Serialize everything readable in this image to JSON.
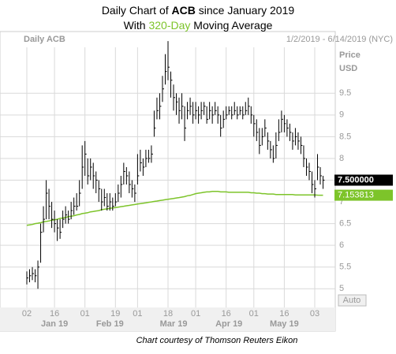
{
  "chart_data": {
    "type": "ohlc",
    "title_line1": [
      "Daily Chart of ",
      "ACB",
      " since January 2019"
    ],
    "title_line2": [
      "With ",
      "320-Day",
      " Moving Average"
    ],
    "panel_label": "Daily ACB",
    "range_label": "1/2/2019 - 6/14/2019 (NYC)",
    "price_label": "Price",
    "currency_label": "USD",
    "scale_label": "Auto",
    "source": "Chart courtesy of Thomson Reuters Eikon",
    "color": "#000000",
    "x": [
      "2019-01-02",
      "2019-01-03",
      "2019-01-04",
      "2019-01-07",
      "2019-01-08",
      "2019-01-09",
      "2019-01-10",
      "2019-01-11",
      "2019-01-14",
      "2019-01-15",
      "2019-01-16",
      "2019-01-17",
      "2019-01-18",
      "2019-01-22",
      "2019-01-23",
      "2019-01-24",
      "2019-01-25",
      "2019-01-28",
      "2019-01-29",
      "2019-01-30",
      "2019-01-31",
      "2019-02-01",
      "2019-02-04",
      "2019-02-05",
      "2019-02-06",
      "2019-02-07",
      "2019-02-08",
      "2019-02-11",
      "2019-02-12",
      "2019-02-13",
      "2019-02-14",
      "2019-02-15",
      "2019-02-19",
      "2019-02-20",
      "2019-02-21",
      "2019-02-22",
      "2019-02-25",
      "2019-02-26",
      "2019-02-27",
      "2019-02-28",
      "2019-03-01",
      "2019-03-04",
      "2019-03-05",
      "2019-03-06",
      "2019-03-07",
      "2019-03-08",
      "2019-03-11",
      "2019-03-12",
      "2019-03-13",
      "2019-03-14",
      "2019-03-15",
      "2019-03-18",
      "2019-03-19",
      "2019-03-20",
      "2019-03-21",
      "2019-03-22",
      "2019-03-25",
      "2019-03-26",
      "2019-03-27",
      "2019-03-28",
      "2019-03-29",
      "2019-04-01",
      "2019-04-02",
      "2019-04-03",
      "2019-04-04",
      "2019-04-05",
      "2019-04-08",
      "2019-04-09",
      "2019-04-10",
      "2019-04-11",
      "2019-04-12",
      "2019-04-15",
      "2019-04-16",
      "2019-04-17",
      "2019-04-18",
      "2019-04-22",
      "2019-04-23",
      "2019-04-24",
      "2019-04-25",
      "2019-04-26",
      "2019-04-29",
      "2019-04-30",
      "2019-05-01",
      "2019-05-02",
      "2019-05-03",
      "2019-05-06",
      "2019-05-07",
      "2019-05-08",
      "2019-05-09",
      "2019-05-10",
      "2019-05-13",
      "2019-05-14",
      "2019-05-15",
      "2019-05-16",
      "2019-05-17",
      "2019-05-20",
      "2019-05-21",
      "2019-05-22",
      "2019-05-23",
      "2019-05-24",
      "2019-05-28",
      "2019-05-29",
      "2019-05-30",
      "2019-05-31",
      "2019-06-03",
      "2019-06-04",
      "2019-06-05",
      "2019-06-06"
    ],
    "high": [
      5.4,
      5.45,
      5.5,
      5.45,
      5.65,
      6.5,
      6.9,
      7.5,
      7.3,
      7.0,
      6.8,
      6.6,
      6.6,
      6.8,
      6.9,
      6.8,
      7.0,
      7.1,
      7.2,
      7.5,
      8.3,
      8.4,
      8.0,
      8.0,
      7.9,
      7.7,
      7.5,
      7.3,
      7.3,
      7.2,
      7.2,
      7.1,
      7.2,
      7.4,
      7.6,
      7.9,
      7.8,
      7.7,
      7.5,
      7.4,
      8.1,
      8.2,
      8.0,
      8.2,
      8.2,
      8.3,
      9.1,
      9.4,
      9.5,
      9.9,
      10.4,
      10.7,
      10.0,
      9.7,
      9.5,
      9.4,
      9.5,
      9.2,
      9.3,
      9.4,
      9.3,
      9.3,
      9.2,
      9.3,
      9.3,
      9.2,
      9.3,
      9.2,
      9.3,
      9.2,
      9.0,
      9.1,
      9.2,
      9.2,
      9.2,
      9.3,
      9.2,
      9.2,
      9.2,
      9.3,
      9.4,
      9.2,
      9.0,
      8.9,
      8.7,
      8.7,
      8.9,
      8.6,
      8.4,
      8.3,
      8.6,
      8.9,
      9.1,
      9.0,
      8.9,
      8.8,
      8.6,
      8.7,
      8.6,
      8.5,
      8.3,
      8.0,
      7.9,
      7.7,
      7.5,
      8.1,
      7.8,
      7.6
    ],
    "low": [
      5.1,
      5.15,
      5.2,
      5.15,
      5.0,
      5.6,
      6.3,
      6.6,
      6.6,
      6.4,
      6.3,
      6.1,
      6.15,
      6.4,
      6.5,
      6.5,
      6.6,
      6.7,
      6.8,
      6.9,
      7.3,
      7.6,
      7.4,
      7.5,
      7.3,
      7.2,
      7.0,
      6.8,
      6.9,
      6.8,
      6.8,
      6.8,
      6.9,
      7.0,
      7.1,
      7.4,
      7.4,
      7.2,
      7.1,
      7.0,
      7.4,
      7.7,
      7.6,
      7.8,
      7.9,
      7.9,
      8.5,
      8.9,
      8.9,
      9.3,
      9.7,
      9.8,
      9.4,
      9.1,
      9.0,
      8.8,
      8.9,
      8.4,
      8.9,
      9.0,
      8.8,
      8.9,
      8.8,
      8.9,
      9.0,
      8.8,
      8.9,
      8.8,
      9.0,
      8.8,
      8.5,
      8.7,
      8.9,
      9.0,
      8.9,
      9.0,
      8.9,
      9.0,
      8.9,
      9.0,
      9.0,
      8.8,
      8.5,
      8.4,
      8.1,
      8.3,
      8.5,
      8.2,
      8.0,
      7.9,
      8.0,
      8.4,
      8.6,
      8.6,
      8.5,
      8.4,
      8.2,
      8.3,
      8.2,
      8.1,
      7.8,
      7.6,
      7.5,
      7.2,
      7.1,
      7.5,
      7.4,
      7.3
    ],
    "close": [
      5.25,
      5.3,
      5.35,
      5.3,
      5.5,
      6.3,
      6.6,
      7.2,
      6.9,
      6.6,
      6.5,
      6.4,
      6.3,
      6.6,
      6.7,
      6.6,
      6.8,
      6.9,
      6.9,
      7.2,
      7.8,
      8.1,
      7.6,
      7.8,
      7.6,
      7.5,
      7.3,
      7.0,
      7.1,
      6.9,
      7.0,
      6.9,
      7.0,
      7.2,
      7.4,
      7.7,
      7.6,
      7.4,
      7.3,
      7.2,
      7.6,
      7.9,
      7.8,
      8.0,
      8.0,
      8.1,
      8.7,
      9.1,
      9.2,
      9.6,
      10.0,
      10.1,
      9.8,
      9.4,
      9.3,
      9.1,
      9.2,
      8.7,
      9.1,
      9.2,
      9.0,
      9.1,
      9.0,
      9.1,
      9.2,
      8.9,
      9.1,
      9.0,
      9.1,
      9.0,
      8.7,
      8.9,
      9.0,
      9.1,
      9.0,
      9.1,
      9.0,
      9.1,
      9.0,
      9.1,
      9.2,
      9.0,
      8.8,
      8.6,
      8.3,
      8.5,
      8.7,
      8.4,
      8.2,
      8.0,
      8.3,
      8.6,
      8.9,
      8.8,
      8.7,
      8.6,
      8.4,
      8.5,
      8.4,
      8.3,
      8.0,
      7.8,
      7.7,
      7.4,
      7.3,
      7.8,
      7.6,
      7.5
    ],
    "moving_average": {
      "color": "#7dc42a",
      "values": [
        6.46,
        6.47,
        6.48,
        6.5,
        6.51,
        6.52,
        6.54,
        6.55,
        6.56,
        6.58,
        6.59,
        6.6,
        6.62,
        6.63,
        6.64,
        6.66,
        6.67,
        6.68,
        6.7,
        6.71,
        6.73,
        6.74,
        6.75,
        6.77,
        6.78,
        6.79,
        6.8,
        6.82,
        6.83,
        6.84,
        6.85,
        6.86,
        6.87,
        6.88,
        6.89,
        6.9,
        6.91,
        6.92,
        6.93,
        6.94,
        6.95,
        6.96,
        6.97,
        6.98,
        6.99,
        7.0,
        7.01,
        7.02,
        7.03,
        7.04,
        7.05,
        7.06,
        7.07,
        7.08,
        7.09,
        7.1,
        7.11,
        7.12,
        7.14,
        7.15,
        7.17,
        7.19,
        7.2,
        7.21,
        7.22,
        7.23,
        7.23,
        7.24,
        7.24,
        7.24,
        7.23,
        7.23,
        7.23,
        7.22,
        7.22,
        7.22,
        7.22,
        7.22,
        7.22,
        7.22,
        7.22,
        7.21,
        7.21,
        7.2,
        7.2,
        7.19,
        7.19,
        7.18,
        7.18,
        7.18,
        7.17,
        7.17,
        7.17,
        7.17,
        7.17,
        7.17,
        7.17,
        7.16,
        7.16,
        7.16,
        7.16,
        7.16,
        7.16,
        7.16,
        7.16,
        7.155,
        7.154,
        7.153813
      ]
    },
    "last_close_label": "7.500000",
    "last_ma_label": "7.153813",
    "ylim": [
      4.57,
      10.92
    ],
    "yticks": [
      5,
      5.5,
      6,
      6.5,
      7,
      7.5,
      8,
      8.5,
      9,
      9.5
    ],
    "xticks": [
      {
        "value": "2019-01-02",
        "label": "02"
      },
      {
        "value": "2019-01-16",
        "label": "16"
      },
      {
        "value": "2019-02-01",
        "label": "01"
      },
      {
        "value": "2019-02-19",
        "label": "19"
      },
      {
        "value": "2019-03-01",
        "label": "01"
      },
      {
        "value": "2019-03-18",
        "label": "18"
      },
      {
        "value": "2019-04-01",
        "label": "01"
      },
      {
        "value": "2019-04-16",
        "label": "16"
      },
      {
        "value": "2019-05-01",
        "label": "01"
      },
      {
        "value": "2019-05-16",
        "label": "16"
      },
      {
        "value": "2019-06-03",
        "label": "03"
      }
    ],
    "month_ticks": [
      {
        "value": "2019-01-16",
        "label": "Jan 19"
      },
      {
        "value": "2019-02-14",
        "label": "Feb 19"
      },
      {
        "value": "2019-03-20",
        "label": "Mar 19"
      },
      {
        "value": "2019-04-17",
        "label": "Apr 19"
      },
      {
        "value": "2019-05-16",
        "label": "May 19"
      }
    ],
    "grid": true
  }
}
